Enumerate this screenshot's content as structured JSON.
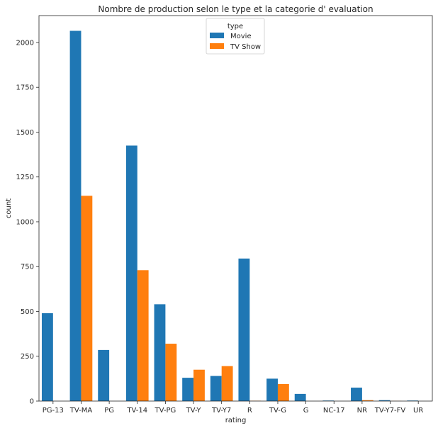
{
  "chart_data": {
    "type": "bar",
    "title": "Nombre de production selon le type et la categorie d' evaluation",
    "xlabel": "rating",
    "ylabel": "count",
    "ylim": [
      0,
      2150
    ],
    "yticks": [
      0,
      250,
      500,
      750,
      1000,
      1250,
      1500,
      1750,
      2000
    ],
    "grid": false,
    "legend": {
      "title": "type",
      "placement": "top-center"
    },
    "categories": [
      "PG-13",
      "TV-MA",
      "PG",
      "TV-14",
      "TV-PG",
      "TV-Y",
      "TV-Y7",
      "R",
      "TV-G",
      "G",
      "NC-17",
      "NR",
      "TV-Y7-FV",
      "UR"
    ],
    "series": [
      {
        "name": "Movie",
        "color": "#1f77b4",
        "values": [
          490,
          2065,
          285,
          1425,
          540,
          130,
          140,
          795,
          125,
          40,
          3,
          75,
          5,
          3
        ]
      },
      {
        "name": "TV Show",
        "color": "#ff7f0e",
        "values": [
          0,
          1145,
          0,
          730,
          320,
          175,
          195,
          2,
          95,
          0,
          0,
          5,
          1,
          0
        ]
      }
    ]
  }
}
